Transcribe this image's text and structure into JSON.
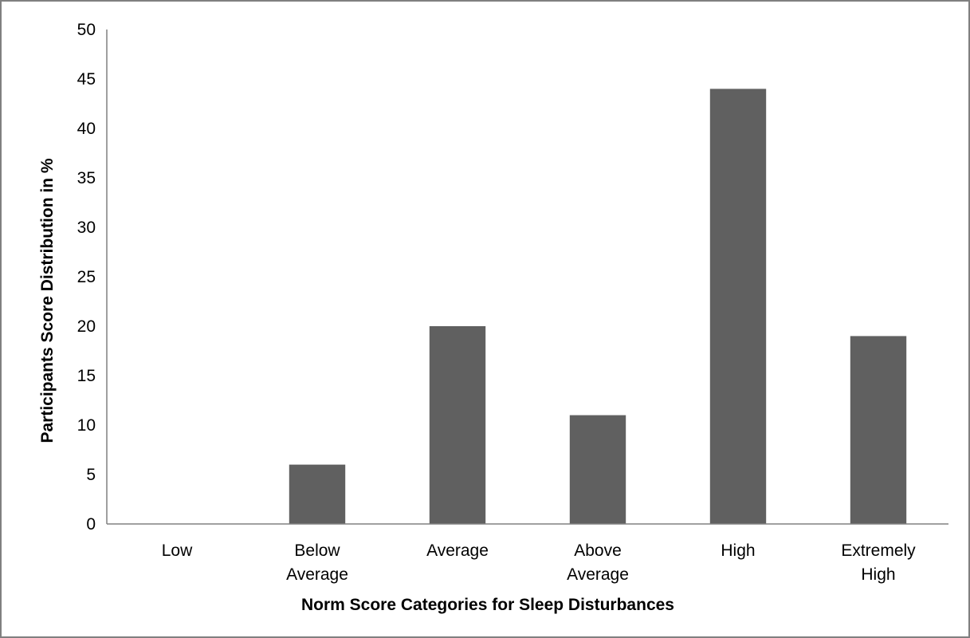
{
  "chart_data": {
    "type": "bar",
    "categories": [
      [
        "Low"
      ],
      [
        "Below",
        "Average"
      ],
      [
        "Average"
      ],
      [
        "Above",
        "Average"
      ],
      [
        "High"
      ],
      [
        "Extremely",
        "High"
      ]
    ],
    "values": [
      0,
      6,
      20,
      11,
      44,
      19
    ],
    "title": "",
    "xlabel": "Norm Score Categories for Sleep Disturbances",
    "ylabel": "Participants Score Distribution in %",
    "ylim": [
      0,
      50
    ],
    "yticks": [
      0,
      5,
      10,
      15,
      20,
      25,
      30,
      35,
      40,
      45,
      50
    ],
    "grid": false,
    "legend": "none",
    "colors": {
      "bar": "#606060",
      "axis": "#808080",
      "frame": "#808080",
      "text": "#000000"
    }
  }
}
